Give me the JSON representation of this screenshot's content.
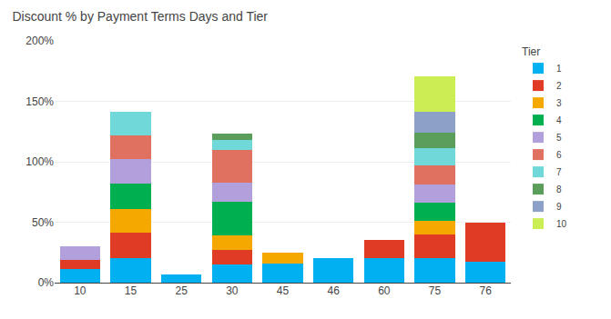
{
  "chart_data": {
    "type": "bar",
    "title": "Discount % by Payment Terms Days and Tier",
    "categories": [
      "10",
      "15",
      "25",
      "30",
      "45",
      "46",
      "60",
      "75",
      "76"
    ],
    "stacked": true,
    "series": [
      {
        "name": "1",
        "color": "#00B0F0",
        "values": [
          11,
          20,
          7,
          15,
          16,
          20,
          20,
          20,
          17
        ]
      },
      {
        "name": "2",
        "color": "#E03B24",
        "values": [
          8,
          21,
          0,
          12,
          0,
          0,
          15,
          20,
          33
        ]
      },
      {
        "name": "3",
        "color": "#F5A800",
        "values": [
          0,
          20,
          0,
          12,
          9,
          0,
          0,
          11,
          0
        ]
      },
      {
        "name": "4",
        "color": "#00B050",
        "values": [
          0,
          21,
          0,
          28,
          0,
          0,
          0,
          15,
          0
        ]
      },
      {
        "name": "5",
        "color": "#B2A0DC",
        "values": [
          11,
          20,
          0,
          16,
          0,
          0,
          0,
          15,
          0
        ]
      },
      {
        "name": "6",
        "color": "#E07060",
        "values": [
          0,
          20,
          0,
          27,
          0,
          0,
          0,
          16,
          0
        ]
      },
      {
        "name": "7",
        "color": "#70D8D8",
        "values": [
          0,
          19,
          0,
          8,
          0,
          0,
          0,
          14,
          0
        ]
      },
      {
        "name": "8",
        "color": "#5B9E5B",
        "values": [
          0,
          0,
          0,
          5,
          0,
          0,
          0,
          13,
          0
        ]
      },
      {
        "name": "9",
        "color": "#8DA0C8",
        "values": [
          0,
          0,
          0,
          0,
          0,
          0,
          0,
          17,
          0
        ]
      },
      {
        "name": "10",
        "color": "#CCEE55",
        "values": [
          0,
          0,
          0,
          0,
          0,
          0,
          0,
          30,
          0
        ]
      }
    ],
    "ylim": [
      0,
      200
    ],
    "yticks": [
      {
        "value": 0,
        "label": "0%"
      },
      {
        "value": 50,
        "label": "50%"
      },
      {
        "value": 100,
        "label": "100%"
      },
      {
        "value": 150,
        "label": "150%"
      },
      {
        "value": 200,
        "label": "200%"
      }
    ],
    "grid": true,
    "legend": "upper right",
    "legend_title": "Tier"
  }
}
